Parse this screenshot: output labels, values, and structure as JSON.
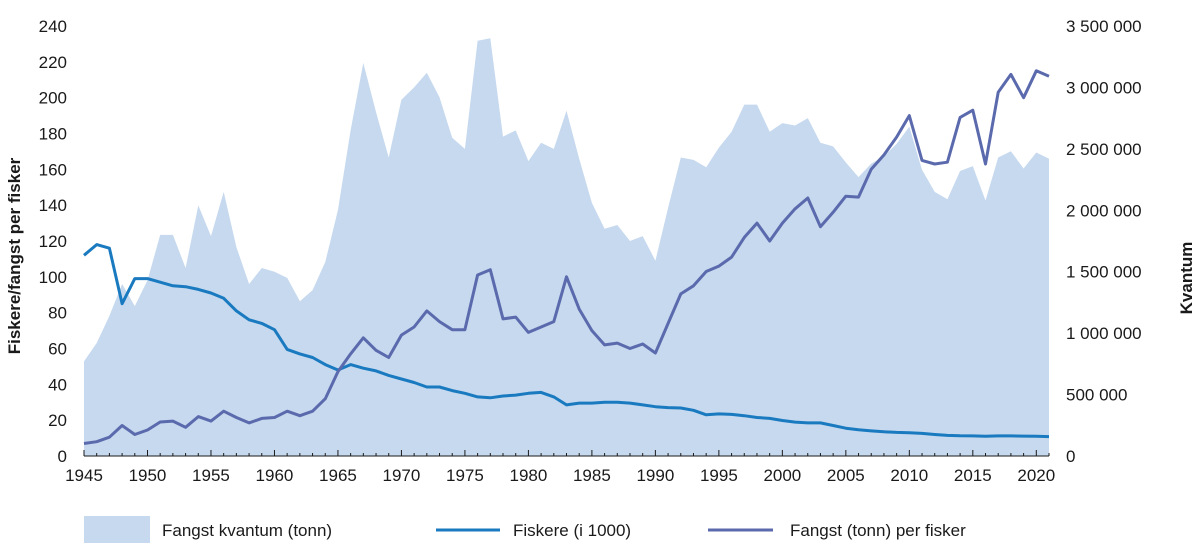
{
  "chart_data": {
    "type": "line",
    "x": [
      1945,
      1946,
      1947,
      1948,
      1949,
      1950,
      1951,
      1952,
      1953,
      1954,
      1955,
      1956,
      1957,
      1958,
      1959,
      1960,
      1961,
      1962,
      1963,
      1964,
      1965,
      1966,
      1967,
      1968,
      1969,
      1970,
      1971,
      1972,
      1973,
      1974,
      1975,
      1976,
      1977,
      1978,
      1979,
      1980,
      1981,
      1982,
      1983,
      1984,
      1985,
      1986,
      1987,
      1988,
      1989,
      1990,
      1991,
      1992,
      1993,
      1994,
      1995,
      1996,
      1997,
      1998,
      1999,
      2000,
      2001,
      2002,
      2003,
      2004,
      2005,
      2006,
      2007,
      2008,
      2009,
      2010,
      2011,
      2012,
      2013,
      2014,
      2015,
      2016,
      2017,
      2018,
      2019,
      2020,
      2021
    ],
    "x_ticks": [
      "1945",
      "1950",
      "1955",
      "1960",
      "1965",
      "1970",
      "1975",
      "1980",
      "1985",
      "1990",
      "1995",
      "2000",
      "2005",
      "2010",
      "2015",
      "2020"
    ],
    "y_left": {
      "label": "Fiskere/fangst per fisker",
      "min": 0,
      "max": 240,
      "ticks": [
        "0",
        "20",
        "40",
        "60",
        "80",
        "100",
        "120",
        "140",
        "160",
        "180",
        "200",
        "220",
        "240"
      ]
    },
    "y_right": {
      "label": "Kvantum",
      "min": 0,
      "max": 3500000,
      "ticks": [
        "0",
        "500 000",
        "1 000 000",
        "1 500 000",
        "2 000 000",
        "2 500 000",
        "3 000 000",
        "3 500 000"
      ]
    },
    "series": [
      {
        "name": "Fangst kvantum (tonn)",
        "kind": "area",
        "axis": "right",
        "color": "#c6d9ef",
        "values": [
          770000,
          920000,
          1140000,
          1400000,
          1220000,
          1430000,
          1800000,
          1800000,
          1530000,
          2040000,
          1790000,
          2150000,
          1700000,
          1400000,
          1530000,
          1500000,
          1450000,
          1260000,
          1350000,
          1580000,
          2000000,
          2650000,
          3200000,
          2800000,
          2430000,
          2900000,
          3000000,
          3120000,
          2920000,
          2590000,
          2500000,
          3380000,
          3400000,
          2600000,
          2650000,
          2400000,
          2550000,
          2500000,
          2810000,
          2420000,
          2060000,
          1850000,
          1880000,
          1750000,
          1790000,
          1590000,
          2020000,
          2430000,
          2410000,
          2350000,
          2510000,
          2640000,
          2860000,
          2860000,
          2640000,
          2710000,
          2690000,
          2750000,
          2550000,
          2520000,
          2390000,
          2270000,
          2380000,
          2440000,
          2540000,
          2680000,
          2330000,
          2150000,
          2090000,
          2320000,
          2360000,
          2080000,
          2430000,
          2480000,
          2340000,
          2470000,
          2420000
        ]
      },
      {
        "name": "Fiskere (i 1000)",
        "kind": "line",
        "axis": "left",
        "color": "#1a7ac0",
        "values": [
          112,
          118,
          116,
          85,
          99,
          99,
          97,
          95,
          94.5,
          93,
          91,
          88,
          81,
          76,
          74,
          70.5,
          59.5,
          57,
          55,
          51,
          48,
          51,
          49,
          47.5,
          45,
          43,
          41,
          38.5,
          38.5,
          36.5,
          35,
          33,
          32.5,
          33.5,
          34,
          35,
          35.5,
          33,
          28.5,
          29.5,
          29.5,
          30,
          30,
          29.5,
          28.5,
          27.5,
          27,
          26.8,
          25.5,
          23,
          23.5,
          23.2,
          22.5,
          21.5,
          21,
          19.8,
          18.9,
          18.5,
          18.5,
          17,
          15.5,
          14.6,
          14.0,
          13.5,
          13.2,
          13.0,
          12.6,
          12.0,
          11.5,
          11.3,
          11.2,
          11.0,
          11.2,
          11.2,
          11.1,
          11.0,
          10.8
        ]
      },
      {
        "name": "Fangst (tonn) per fisker",
        "kind": "line",
        "axis": "left",
        "color": "#5b6aad",
        "values": [
          7,
          8,
          10.5,
          17,
          12,
          14.5,
          19,
          19.5,
          16,
          22,
          19.5,
          25,
          21.5,
          18.5,
          21,
          21.5,
          25,
          22.5,
          25,
          32,
          47,
          57,
          66,
          59,
          55,
          67.5,
          72,
          81,
          75,
          70.5,
          70.5,
          101,
          104,
          76.5,
          77.5,
          69,
          72,
          75,
          100,
          82,
          70,
          62,
          63,
          60,
          62.5,
          57.5,
          74,
          90.5,
          95,
          103,
          106,
          111,
          122,
          130,
          120,
          130,
          138,
          144,
          128,
          136,
          145,
          144.5,
          160,
          168,
          178,
          190,
          165,
          163,
          164,
          189,
          193,
          163,
          203,
          213,
          200,
          215,
          212
        ]
      }
    ],
    "legend": {
      "placement": "bottom",
      "items": [
        "Fangst kvantum (tonn)",
        "Fiskere (i 1000)",
        "Fangst (tonn) per fisker"
      ]
    }
  }
}
